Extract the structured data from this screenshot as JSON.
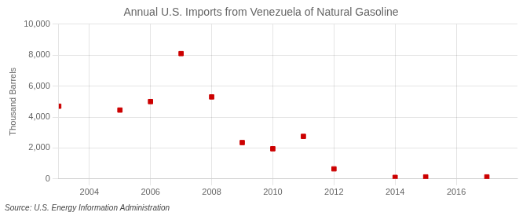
{
  "chart_data": {
    "type": "scatter",
    "title": "Annual U.S. Imports from Venezuela of Natural Gasoline",
    "ylabel": "Thousand Barrels",
    "source": "Source: U.S. Energy Information Administration",
    "x": [
      2003,
      2005,
      2006,
      2007,
      2008,
      2009,
      2010,
      2011,
      2012,
      2014,
      2015,
      2017
    ],
    "values": [
      4700,
      4450,
      5000,
      8100,
      5300,
      2350,
      1950,
      2750,
      650,
      100,
      130,
      130
    ],
    "color": "#cc0000",
    "marker": "square",
    "xlim": [
      2003.0,
      2018.0
    ],
    "ylim": [
      0,
      10000
    ],
    "xticks": [
      2004,
      2006,
      2008,
      2010,
      2012,
      2014,
      2016
    ],
    "yticks": [
      0,
      {
        "value": 2000,
        "label": "2,000"
      },
      {
        "value": 4000,
        "label": "4,000"
      },
      {
        "value": 6000,
        "label": "6,000"
      },
      {
        "value": 8000,
        "label": "8,000"
      },
      {
        "value": 10000,
        "label": "10,000"
      }
    ],
    "grid": true
  }
}
